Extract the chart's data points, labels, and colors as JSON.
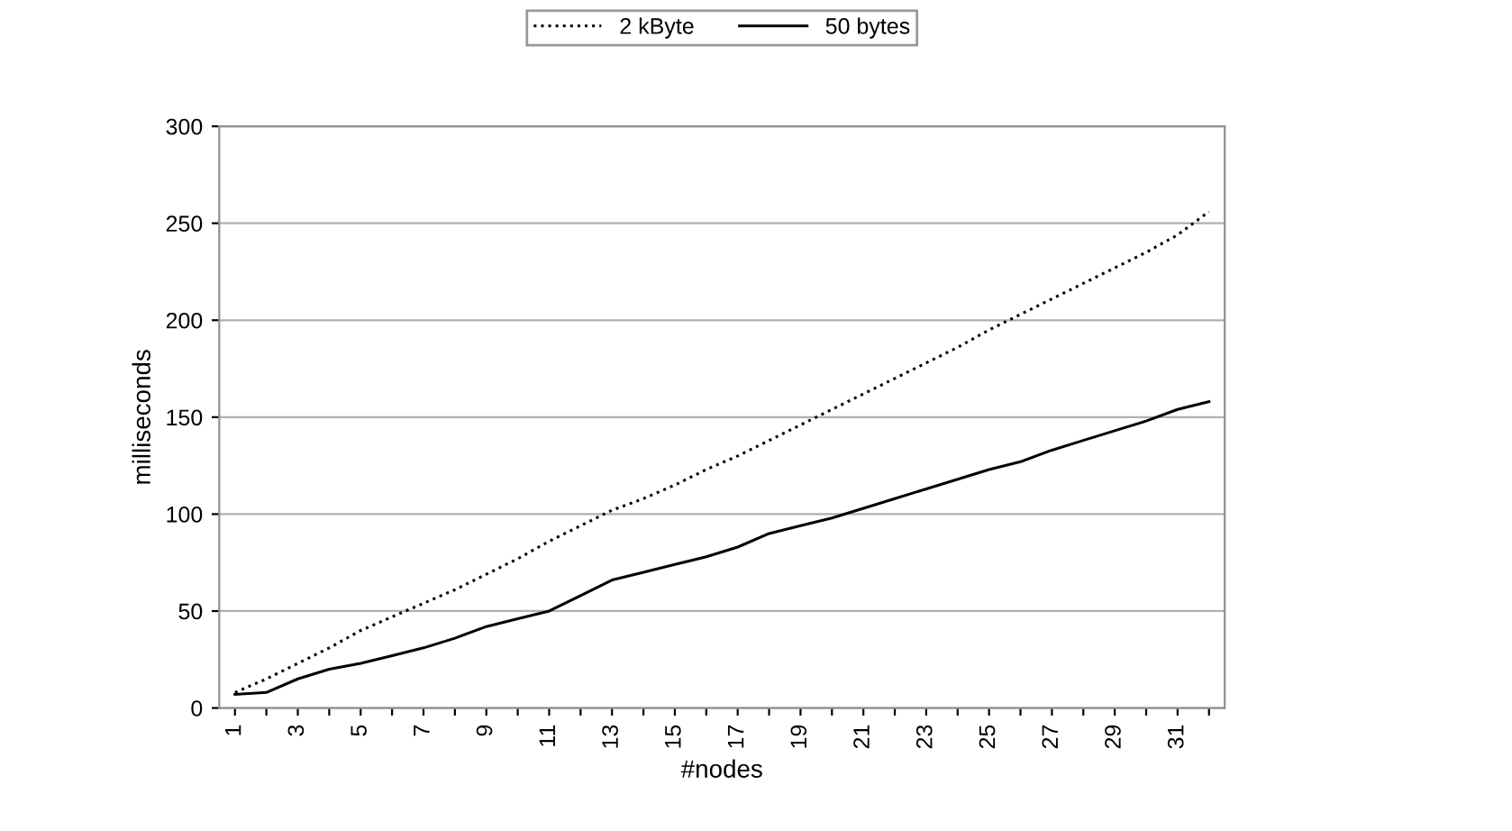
{
  "chart_data": {
    "type": "line",
    "xlabel": "#nodes",
    "ylabel": "milliseconds",
    "categories": [
      "1",
      null,
      "3",
      null,
      "5",
      null,
      "7",
      null,
      "9",
      null,
      "11",
      null,
      "13",
      null,
      "15",
      null,
      "17",
      null,
      "19",
      null,
      "21",
      null,
      "23",
      null,
      "25",
      null,
      "27",
      null,
      "29",
      null,
      "31",
      null
    ],
    "series": [
      {
        "name": "2 kByte",
        "color": "#000000",
        "line_style": "dotted",
        "values": [
          8,
          15,
          23,
          31,
          40,
          47,
          54,
          61,
          69,
          77,
          86,
          94,
          102,
          108,
          115,
          123,
          130,
          138,
          146,
          154,
          162,
          170,
          178,
          186,
          195,
          203,
          211,
          219,
          227,
          235,
          244,
          256
        ]
      },
      {
        "name": "50 bytes",
        "color": "#000000",
        "line_style": "solid",
        "values": [
          7,
          8,
          15,
          20,
          23,
          27,
          31,
          36,
          42,
          46,
          50,
          58,
          66,
          70,
          74,
          78,
          83,
          90,
          94,
          98,
          103,
          108,
          113,
          118,
          123,
          127,
          133,
          138,
          143,
          148,
          154,
          158
        ]
      }
    ],
    "ylim": [
      0,
      300
    ],
    "yticks": [
      0,
      50,
      100,
      150,
      200,
      250,
      300
    ],
    "grid": "y",
    "legend": "top",
    "marker": "none"
  }
}
